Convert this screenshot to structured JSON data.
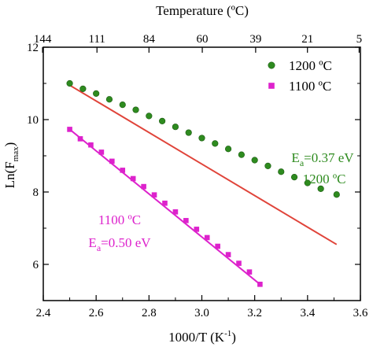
{
  "chart_data": {
    "type": "scatter",
    "xlabel_main": "1000/T (K",
    "xlabel_sup": "-1",
    "xlabel_close": ")",
    "ylabel_main": "Ln(F",
    "ylabel_sub": "max",
    "ylabel_close": ")",
    "top_axis_label": "Temperature (ºC)",
    "xlim": [
      2.4,
      3.6
    ],
    "ylim": [
      5,
      12
    ],
    "x_ticks": [
      2.4,
      2.6,
      2.8,
      3.0,
      3.2,
      3.4,
      3.6
    ],
    "x_tick_labels": [
      "2.4",
      "2.6",
      "2.8",
      "3.0",
      "3.2",
      "3.4",
      "3.6"
    ],
    "y_ticks": [
      6,
      8,
      10,
      12
    ],
    "y_tick_labels": [
      "6",
      "8",
      "10",
      "12"
    ],
    "top_ticks": [
      144,
      111,
      84,
      60,
      39,
      21,
      5
    ],
    "top_tick_labels": [
      "144",
      "111",
      "84",
      "60",
      "39",
      "21",
      "5"
    ],
    "legend_position": "top-right",
    "series": [
      {
        "name": "1200 ºC",
        "marker": "circle",
        "color": "#2e8b1f",
        "fit_color": "#e0443a",
        "x": [
          2.5,
          2.55,
          2.6,
          2.65,
          2.7,
          2.75,
          2.8,
          2.85,
          2.9,
          2.95,
          3.0,
          3.05,
          3.1,
          3.15,
          3.2,
          3.25,
          3.3,
          3.35,
          3.4,
          3.45,
          3.51
        ],
        "y": [
          11.0,
          10.85,
          10.72,
          10.56,
          10.41,
          10.27,
          10.1,
          9.96,
          9.8,
          9.64,
          9.49,
          9.34,
          9.19,
          9.03,
          8.88,
          8.72,
          8.56,
          8.41,
          8.25,
          8.09,
          7.93
        ],
        "fit": {
          "x": [
            2.5,
            3.51
          ],
          "y": [
            10.95,
            6.55
          ]
        }
      },
      {
        "name": "1100 ºC",
        "marker": "square",
        "color": "#dd22cc",
        "fit_color": "#dd22cc",
        "x": [
          2.5,
          2.54,
          2.58,
          2.62,
          2.66,
          2.7,
          2.74,
          2.78,
          2.82,
          2.86,
          2.9,
          2.94,
          2.98,
          3.02,
          3.06,
          3.1,
          3.14,
          3.18,
          3.22
        ],
        "y": [
          9.73,
          9.47,
          9.3,
          9.1,
          8.85,
          8.6,
          8.37,
          8.15,
          7.92,
          7.69,
          7.45,
          7.21,
          6.97,
          6.74,
          6.5,
          6.27,
          6.03,
          5.79,
          5.45
        ],
        "fit": {
          "x": [
            2.5,
            3.22
          ],
          "y": [
            9.73,
            5.45
          ]
        }
      }
    ],
    "annotations": [
      {
        "series": 0,
        "line1_main": "E",
        "line1_sub": "a",
        "line1_rest": "=0.37 eV",
        "line2": "1200 ºC",
        "x": 3.43,
        "y": 8.0,
        "color": "#2e8b1f"
      },
      {
        "series": 1,
        "line1": "1100 ºC",
        "line2_main": "E",
        "line2_sub": "a",
        "line2_rest": "=0.50 eV",
        "x": 2.7,
        "y": 6.6,
        "color": "#dd22cc"
      }
    ]
  }
}
